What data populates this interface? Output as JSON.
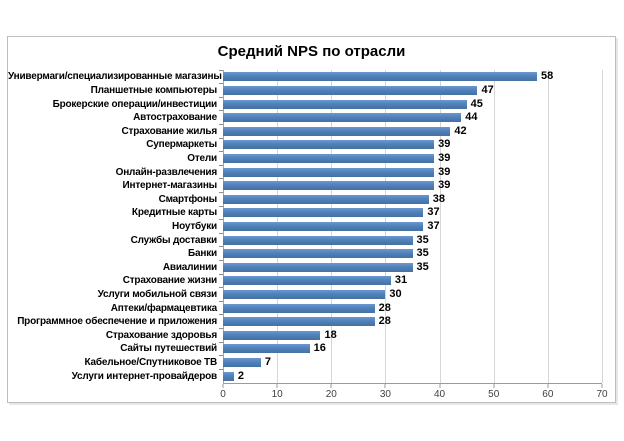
{
  "chart_data": {
    "type": "bar",
    "orientation": "horizontal",
    "title": "Средний NPS по отрасли",
    "categories": [
      "Универмаги/специализированные магазины",
      "Планшетные компьютеры",
      "Брокерские операции/инвестиции",
      "Автострахование",
      "Страхование жилья",
      "Супермаркеты",
      "Отели",
      "Онлайн-развлечения",
      "Интернет-магазины",
      "Смартфоны",
      "Кредитные карты",
      "Ноутбуки",
      "Службы доставки",
      "Банки",
      "Авиалинии",
      "Страхование жизни",
      "Услуги мобильной связи",
      "Аптеки/фармацевтика",
      "Программное обеспечение и приложения",
      "Страхование здоровья",
      "Сайты путешествий",
      "Кабельное/Спутниковое ТВ",
      "Услуги интернет-провайдеров"
    ],
    "values": [
      58,
      47,
      45,
      44,
      42,
      39,
      39,
      39,
      39,
      38,
      37,
      37,
      35,
      35,
      35,
      31,
      30,
      28,
      28,
      18,
      16,
      7,
      2
    ],
    "xlabel": "",
    "ylabel": "",
    "xlim": [
      0,
      70
    ],
    "xticks": [
      0,
      10,
      20,
      30,
      40,
      50,
      60,
      70
    ],
    "grid": true,
    "legend": false,
    "data_labels": true,
    "bar_color": "#4F81BD",
    "gridline_color": "#D6D6D6",
    "axis_color": "#9B9B9B",
    "frame_border_color": "#BDBDBD"
  }
}
